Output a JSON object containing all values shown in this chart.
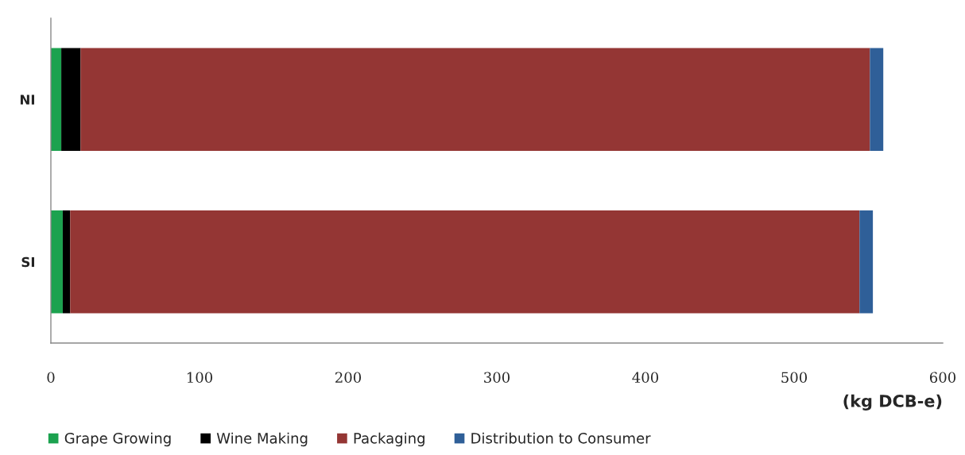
{
  "chart_data": {
    "type": "bar",
    "orientation": "horizontal",
    "stacked": true,
    "categories": [
      "NI",
      "SI"
    ],
    "series": [
      {
        "name": "Grape Growing",
        "color": "#1ca24f",
        "values": [
          7,
          8
        ]
      },
      {
        "name": "Wine Making",
        "color": "#000000",
        "values": [
          13,
          5
        ]
      },
      {
        "name": "Packaging",
        "color": "#943634",
        "values": [
          531,
          531
        ]
      },
      {
        "name": "Distribution to Consumer",
        "color": "#2f5f98",
        "values": [
          9,
          9
        ]
      }
    ],
    "xlim": [
      0,
      600
    ],
    "xticks": [
      0,
      100,
      200,
      300,
      400,
      500,
      600
    ],
    "xlabel": "(kg DCB-e)",
    "legend": "bottom",
    "grid": false
  }
}
